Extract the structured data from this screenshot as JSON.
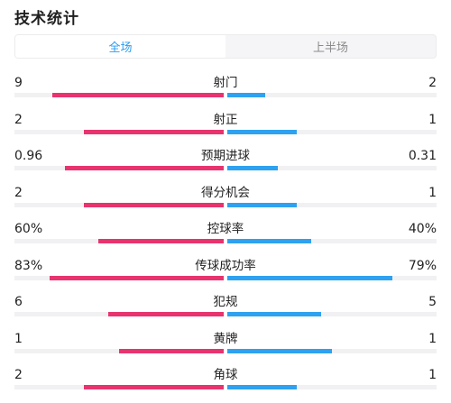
{
  "header": {
    "title": "技术统计"
  },
  "tabs": [
    {
      "label": "全场",
      "active": true
    },
    {
      "label": "上半场",
      "active": false
    }
  ],
  "colors": {
    "home": "#e8336f",
    "away": "#2ea1f0",
    "tab_active": "#2a9bf0"
  },
  "stats": [
    {
      "name": "射门",
      "left": "9",
      "right": "2",
      "left_share": 0.82,
      "right_share": 0.18
    },
    {
      "name": "射正",
      "left": "2",
      "right": "1",
      "left_share": 0.67,
      "right_share": 0.33
    },
    {
      "name": "预期进球",
      "left": "0.96",
      "right": "0.31",
      "left_share": 0.76,
      "right_share": 0.24
    },
    {
      "name": "得分机会",
      "left": "2",
      "right": "1",
      "left_share": 0.67,
      "right_share": 0.33
    },
    {
      "name": "控球率",
      "left": "60%",
      "right": "40%",
      "left_share": 0.6,
      "right_share": 0.4
    },
    {
      "name": "传球成功率",
      "left": "83%",
      "right": "79%",
      "left_share": 0.83,
      "right_share": 0.79
    },
    {
      "name": "犯规",
      "left": "6",
      "right": "5",
      "left_share": 0.55,
      "right_share": 0.45
    },
    {
      "name": "黄牌",
      "left": "1",
      "right": "1",
      "left_share": 0.5,
      "right_share": 0.5
    },
    {
      "name": "角球",
      "left": "2",
      "right": "1",
      "left_share": 0.67,
      "right_share": 0.33
    }
  ]
}
